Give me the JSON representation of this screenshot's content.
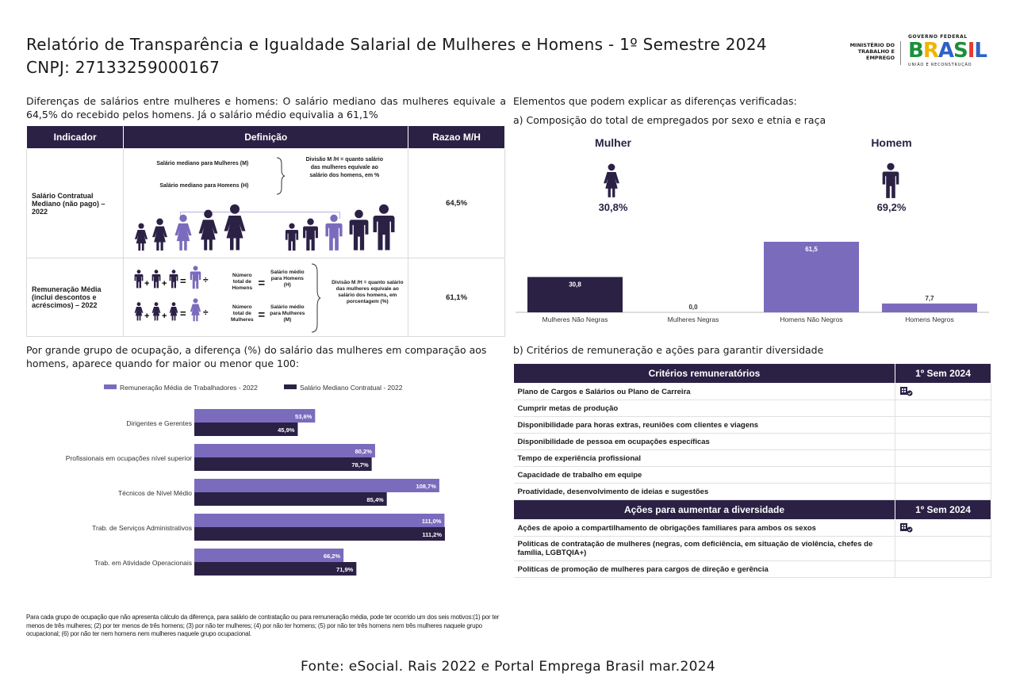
{
  "header": {
    "title_line1": "Relatório de Transparência e Igualdade Salarial de Mulheres e Homens - 1º Semestre 2024",
    "title_line2": "CNPJ: 27133259000167",
    "ministry": "MINISTÉRIO DO TRABALHO E EMPREGO",
    "gov_label": "GOVERNO FEDERAL",
    "gov_brand": "BRASIL",
    "gov_slogan": "UNIÃO E RECONSTRUÇÃO"
  },
  "intro": "Diferenças de salários entre mulheres e homens: O salário mediano das mulheres equivale a 64,5% do recebido pelos homens. Já o salário médio equivalia a 61,1%",
  "def_table": {
    "headers": [
      "Indicador",
      "Definição",
      "Razao M/H"
    ],
    "row1": {
      "indicator": "Salário Contratual Mediano (não pago) – 2022",
      "def_line1": "Salário mediano para Mulheres (M)",
      "def_line2": "Salário mediano para Homens (H)",
      "division": "Divisão M /H = quanto salário das mulheres equivale ao salário dos homens, em %",
      "ratio": "64,5%"
    },
    "row2": {
      "indicator": "Remuneração Média (inclui descontos e acréscimos) – 2022",
      "eq1_total": "Número total de Homens",
      "eq1_result": "Salário médio para Homens (H)",
      "eq2_total": "Número total de Mulheres",
      "eq2_result": "Salário médio para Mulheres (M)",
      "division": "Divisão M /H = quanto salário das mulheres equivale ao salário dos homens, em porcentagem (%)",
      "ratio": "61,1%"
    }
  },
  "occupation": {
    "heading": "Por grande grupo de ocupação, a diferença (%) do salário das mulheres em comparação aos homens, aparece quando for maior ou menor que 100:"
  },
  "chart_data": [
    {
      "type": "bar",
      "orientation": "horizontal",
      "categories": [
        "Dirigentes e Gerentes",
        "Profissionais em ocupações nível superior",
        "Técnicos de Nível Médio",
        "Trab. de Serviços Administrativos",
        "Trab. em Atividade Operacionais"
      ],
      "series": [
        {
          "name": "Remuneração Média de Trabalhadores - 2022",
          "values": [
            53.6,
            80.2,
            108.7,
            111.0,
            66.2
          ],
          "labels": [
            "53,6%",
            "80,2%",
            "108,7%",
            "111,0%",
            "66,2%"
          ],
          "color": "#7b6bbd"
        },
        {
          "name": "Salário Mediano Contratual - 2022",
          "values": [
            45.9,
            78.7,
            85.4,
            111.2,
            71.9
          ],
          "labels": [
            "45,9%",
            "78,7%",
            "85,4%",
            "111,2%",
            "71,9%"
          ],
          "color": "#2b2145"
        }
      ],
      "xlim": [
        0,
        120
      ],
      "legend": "top"
    },
    {
      "type": "bar",
      "categories": [
        "Mulheres Não Negras",
        "Mulheres Negras",
        "Homens Não Negros",
        "Homens Negros"
      ],
      "values": [
        30.8,
        0.0,
        61.5,
        7.7
      ],
      "labels": [
        "30,8",
        "0,0",
        "61,5",
        "7,7"
      ],
      "colors": [
        "#2b2145",
        "#2b2145",
        "#7b6bbd",
        "#7b6bbd"
      ],
      "ylim": [
        0,
        70
      ]
    }
  ],
  "composition": {
    "heading": "Elementos que podem explicar as diferenças verificadas:",
    "subheading": "a) Composição do total de empregados por sexo e etnia e raça",
    "female_label": "Mulher",
    "female_pct": "30,8%",
    "male_label": "Homem",
    "male_pct": "69,2%"
  },
  "criteria": {
    "heading": "b) Critérios de remuneração e ações para garantir diversidade",
    "header1": "Critérios remuneratórios",
    "period": "1º Sem 2024",
    "items": [
      {
        "label": "Plano de Cargos e Salários ou Plano de Carreira",
        "checked": true
      },
      {
        "label": "Cumprir metas de produção",
        "checked": false
      },
      {
        "label": "Disponibilidade para horas extras, reuniões com clientes e viagens",
        "checked": false
      },
      {
        "label": "Disponibilidade de pessoa em ocupações específicas",
        "checked": false
      },
      {
        "label": "Tempo de experiência profissional",
        "checked": false
      },
      {
        "label": "Capacidade de trabalho em equipe",
        "checked": false
      },
      {
        "label": "Proatividade, desenvolvimento de ideias e sugestões",
        "checked": false
      }
    ],
    "header2": "Ações para aumentar a diversidade",
    "period2": "1º Sem 2024",
    "actions": [
      {
        "label": "Ações de apoio a compartilhamento de obrigações familiares para ambos os sexos",
        "checked": true
      },
      {
        "label": "Políticas de contratação de mulheres (negras, com deficiência, em situação de violência, chefes de família, LGBTQIA+)",
        "checked": false
      },
      {
        "label": "Políticas de promoção de mulheres para cargos de direção e gerência",
        "checked": false
      }
    ]
  },
  "footnote": "Para cada grupo de ocupação que não apresenta cálculo da diferença, para salário de contratação ou para remuneração média, pode ter ocorrido um dos seis motivos:(1) por ter menos de três mulheres; (2) por ter menos de três homens; (3) por não ter mulheres; (4) por não ter homens; (5) por não ter três homens nem três mulheres naquele grupo ocupacional; (6) por não ter nem homens nem mulheres naquele grupo ocupacional.",
  "source": "Fonte: eSocial. Rais 2022 e Portal Emprega Brasil mar.2024",
  "colors": {
    "dark": "#2b2145",
    "light": "#7b6bbd"
  }
}
